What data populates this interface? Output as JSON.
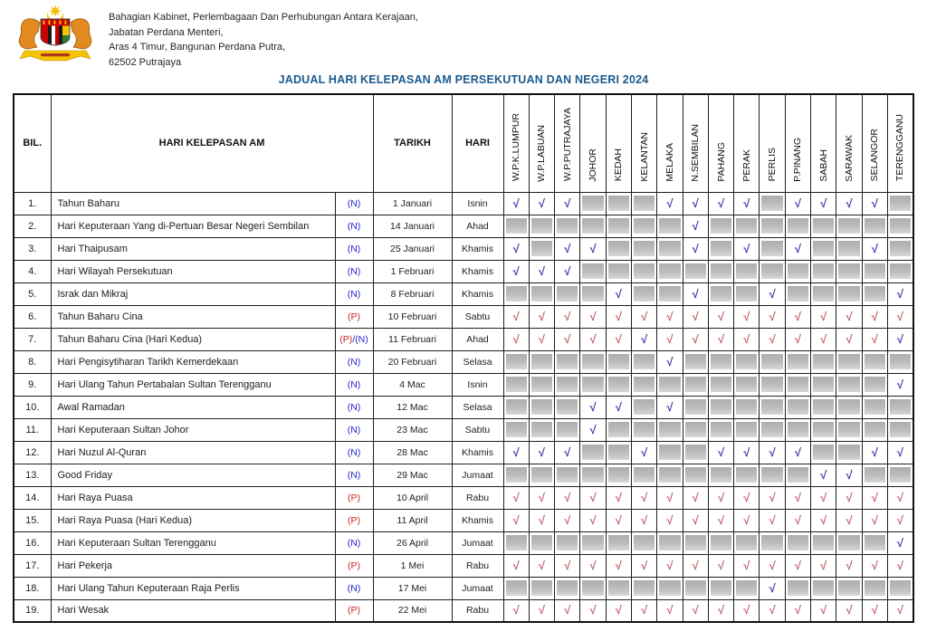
{
  "header": {
    "address_lines": [
      "Bahagian Kabinet, Perlembagaan Dan Perhubungan Antara  Kerajaan,",
      "Jabatan Perdana Menteri,",
      "Aras 4 Timur, Bangunan Perdana Putra,",
      "62502 Putrajaya"
    ],
    "title": "JADUAL HARI KELEPASAN AM PERSEKUTUAN DAN NEGERI 2024"
  },
  "colors": {
    "title": "#1b5a8e",
    "n_marker": "#2323cd",
    "p_marker": "#cd2323",
    "check_blue": "#3c3cae",
    "check_red": "#c4666c",
    "gray_cell": "#b7b7b7"
  },
  "table": {
    "check_glyph": "√",
    "columns": {
      "bil": "BIL.",
      "holiday": "HARI KELEPASAN AM",
      "date": "TARIKH",
      "day": "HARI"
    },
    "states": [
      "W.P.K.LUMPUR",
      "W.P.LABUAN",
      "W.P.PUTRAJAYA",
      "JOHOR",
      "KEDAH",
      "KELANTAN",
      "MELAKA",
      "N.SEMBILAN",
      "PAHANG",
      "PERAK",
      "PERLIS",
      "P.PINANG",
      "SABAH",
      "SARAWAK",
      "SELANGOR",
      "TERENGGANU"
    ],
    "cell_legend": {
      "0": "gray",
      "1": "blue-check",
      "2": "red-check"
    },
    "rows": [
      {
        "bil": "1.",
        "name": "Tahun Baharu",
        "marker": "(N)",
        "marker_type": "N",
        "date": "1 Januari",
        "day": "Isnin",
        "cells": [
          1,
          1,
          1,
          0,
          0,
          0,
          1,
          1,
          1,
          1,
          0,
          1,
          1,
          1,
          1,
          0
        ]
      },
      {
        "bil": "2.",
        "name": "Hari Keputeraan Yang di-Pertuan Besar Negeri Sembilan",
        "marker": "(N)",
        "marker_type": "N",
        "date": "14 Januari",
        "day": "Ahad",
        "cells": [
          0,
          0,
          0,
          0,
          0,
          0,
          0,
          1,
          0,
          0,
          0,
          0,
          0,
          0,
          0,
          0
        ]
      },
      {
        "bil": "3.",
        "name": "Hari Thaipusam",
        "marker": "(N)",
        "marker_type": "N",
        "date": "25 Januari",
        "day": "Khamis",
        "cells": [
          1,
          0,
          1,
          1,
          0,
          0,
          0,
          1,
          0,
          1,
          0,
          1,
          0,
          0,
          1,
          0
        ]
      },
      {
        "bil": "4.",
        "name": "Hari Wilayah Persekutuan",
        "marker": "(N)",
        "marker_type": "N",
        "date": "1 Februari",
        "day": "Khamis",
        "cells": [
          1,
          1,
          1,
          0,
          0,
          0,
          0,
          0,
          0,
          0,
          0,
          0,
          0,
          0,
          0,
          0
        ]
      },
      {
        "bil": "5.",
        "name": "Israk dan Mikraj",
        "marker": "(N)",
        "marker_type": "N",
        "date": "8 Februari",
        "day": "Khamis",
        "cells": [
          0,
          0,
          0,
          0,
          1,
          0,
          0,
          1,
          0,
          0,
          1,
          0,
          0,
          0,
          0,
          1
        ]
      },
      {
        "bil": "6.",
        "name": "Tahun Baharu Cina",
        "marker": "(P)",
        "marker_type": "P",
        "date": "10 Februari",
        "day": "Sabtu",
        "cells": [
          2,
          2,
          2,
          2,
          2,
          2,
          2,
          2,
          2,
          2,
          2,
          2,
          2,
          2,
          2,
          2
        ]
      },
      {
        "bil": "7.",
        "name": "Tahun Baharu Cina (Hari Kedua)",
        "marker": "(P)/(N)",
        "marker_type": "PN",
        "date": "11 Februari",
        "day": "Ahad",
        "cells": [
          2,
          2,
          2,
          2,
          2,
          1,
          2,
          2,
          2,
          2,
          2,
          2,
          2,
          2,
          2,
          1
        ]
      },
      {
        "bil": "8.",
        "name": "Hari Pengisytiharan Tarikh Kemerdekaan",
        "marker": "(N)",
        "marker_type": "N",
        "date": "20 Februari",
        "day": "Selasa",
        "cells": [
          0,
          0,
          0,
          0,
          0,
          0,
          1,
          0,
          0,
          0,
          0,
          0,
          0,
          0,
          0,
          0
        ]
      },
      {
        "bil": "9.",
        "name": "Hari Ulang Tahun Pertabalan Sultan Terengganu",
        "marker": "(N)",
        "marker_type": "N",
        "date": "4 Mac",
        "day": "Isnin",
        "cells": [
          0,
          0,
          0,
          0,
          0,
          0,
          0,
          0,
          0,
          0,
          0,
          0,
          0,
          0,
          0,
          1
        ]
      },
      {
        "bil": "10.",
        "name": "Awal Ramadan",
        "marker": "(N)",
        "marker_type": "N",
        "date": "12 Mac",
        "day": "Selasa",
        "cells": [
          0,
          0,
          0,
          1,
          1,
          0,
          1,
          0,
          0,
          0,
          0,
          0,
          0,
          0,
          0,
          0
        ]
      },
      {
        "bil": "11.",
        "name": "Hari Keputeraan Sultan Johor",
        "marker": "(N)",
        "marker_type": "N",
        "date": "23 Mac",
        "day": "Sabtu",
        "cells": [
          0,
          0,
          0,
          1,
          0,
          0,
          0,
          0,
          0,
          0,
          0,
          0,
          0,
          0,
          0,
          0
        ]
      },
      {
        "bil": "12.",
        "name": "Hari Nuzul Al-Quran",
        "marker": "(N)",
        "marker_type": "N",
        "date": "28 Mac",
        "day": "Khamis",
        "cells": [
          1,
          1,
          1,
          0,
          0,
          1,
          0,
          0,
          1,
          1,
          1,
          1,
          0,
          0,
          1,
          1
        ]
      },
      {
        "bil": "13.",
        "name": "Good Friday",
        "marker": "(N)",
        "marker_type": "N",
        "date": "29 Mac",
        "day": "Jumaat",
        "cells": [
          0,
          0,
          0,
          0,
          0,
          0,
          0,
          0,
          0,
          0,
          0,
          0,
          1,
          1,
          0,
          0
        ]
      },
      {
        "bil": "14.",
        "name": "Hari Raya Puasa",
        "marker": "(P)",
        "marker_type": "P",
        "date": "10 April",
        "day": "Rabu",
        "cells": [
          2,
          2,
          2,
          2,
          2,
          2,
          2,
          2,
          2,
          2,
          2,
          2,
          2,
          2,
          2,
          2
        ]
      },
      {
        "bil": "15.",
        "name": "Hari Raya Puasa (Hari Kedua)",
        "marker": "(P)",
        "marker_type": "P",
        "date": "11 April",
        "day": "Khamis",
        "cells": [
          2,
          2,
          2,
          2,
          2,
          2,
          2,
          2,
          2,
          2,
          2,
          2,
          2,
          2,
          2,
          2
        ]
      },
      {
        "bil": "16.",
        "name": "Hari Keputeraan Sultan Terengganu",
        "marker": "(N)",
        "marker_type": "N",
        "date": "26 April",
        "day": "Jumaat",
        "cells": [
          0,
          0,
          0,
          0,
          0,
          0,
          0,
          0,
          0,
          0,
          0,
          0,
          0,
          0,
          0,
          1
        ]
      },
      {
        "bil": "17.",
        "name": "Hari Pekerja",
        "marker": "(P)",
        "marker_type": "P",
        "date": "1 Mei",
        "day": "Rabu",
        "cells": [
          2,
          2,
          2,
          2,
          2,
          2,
          2,
          2,
          2,
          2,
          2,
          2,
          2,
          2,
          2,
          2
        ]
      },
      {
        "bil": "18.",
        "name": "Hari Ulang Tahun Keputeraan Raja Perlis",
        "marker": "(N)",
        "marker_type": "N",
        "date": "17 Mei",
        "day": "Jumaat",
        "cells": [
          0,
          0,
          0,
          0,
          0,
          0,
          0,
          0,
          0,
          0,
          1,
          0,
          0,
          0,
          0,
          0
        ]
      },
      {
        "bil": "19.",
        "name": "Hari Wesak",
        "marker": "(P)",
        "marker_type": "P",
        "date": "22 Mei",
        "day": "Rabu",
        "cells": [
          2,
          2,
          2,
          2,
          2,
          2,
          2,
          2,
          2,
          2,
          2,
          2,
          2,
          2,
          2,
          2
        ]
      }
    ]
  }
}
